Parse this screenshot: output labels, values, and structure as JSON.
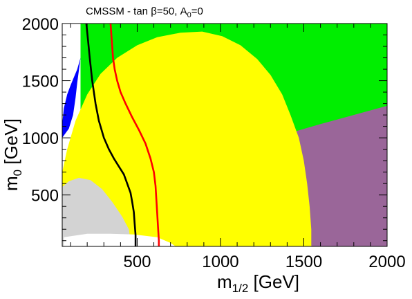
{
  "chart_data": {
    "type": "area",
    "title": "CMSSM  -  tan β=50,  A₀=0",
    "title_parts": [
      "CMSSM  -  tan ",
      "β",
      "=50,  A",
      "0",
      "=0"
    ],
    "xlabel_parts": [
      "m",
      "1/2",
      " [GeV]"
    ],
    "ylabel_parts": [
      "m",
      "0",
      " [GeV]"
    ],
    "xlim": [
      50,
      2000
    ],
    "ylim": [
      50,
      2000
    ],
    "x_ticks": [
      500,
      1000,
      1500,
      2000
    ],
    "y_ticks": [
      500,
      1000,
      1500,
      2000
    ],
    "grid": false,
    "regions": [
      {
        "id": "green",
        "color": "#00ee00",
        "points": [
          [
            160,
            2000
          ],
          [
            2000,
            2000
          ],
          [
            2000,
            1000
          ],
          [
            160,
            1000
          ]
        ]
      },
      {
        "id": "purple",
        "color": "#9a6699",
        "points": [
          [
            1410,
            1040
          ],
          [
            1600,
            1120
          ],
          [
            2000,
            1280
          ],
          [
            2000,
            50
          ],
          [
            1545,
            50
          ],
          [
            1520,
            380
          ],
          [
            1480,
            800
          ]
        ]
      },
      {
        "id": "yellow",
        "color": "#ffff00",
        "points": [
          [
            50,
            200
          ],
          [
            50,
            700
          ],
          [
            80,
            900
          ],
          [
            130,
            1150
          ],
          [
            200,
            1380
          ],
          [
            280,
            1560
          ],
          [
            380,
            1700
          ],
          [
            500,
            1810
          ],
          [
            620,
            1880
          ],
          [
            760,
            1920
          ],
          [
            890,
            1930
          ],
          [
            1010,
            1890
          ],
          [
            1120,
            1810
          ],
          [
            1220,
            1690
          ],
          [
            1300,
            1550
          ],
          [
            1370,
            1380
          ],
          [
            1420,
            1200
          ],
          [
            1470,
            1000
          ],
          [
            1500,
            800
          ],
          [
            1520,
            600
          ],
          [
            1535,
            400
          ],
          [
            1545,
            200
          ],
          [
            1545,
            50
          ],
          [
            50,
            50
          ]
        ]
      },
      {
        "id": "grey",
        "color": "#d3d3d3",
        "points": [
          [
            50,
            50
          ],
          [
            50,
            570
          ],
          [
            90,
            620
          ],
          [
            150,
            650
          ],
          [
            220,
            630
          ],
          [
            290,
            550
          ],
          [
            350,
            440
          ],
          [
            410,
            310
          ],
          [
            450,
            200
          ],
          [
            460,
            100
          ],
          [
            460,
            50
          ]
        ]
      },
      {
        "id": "white-bottom",
        "color": "#ffffff",
        "points": [
          [
            60,
            50
          ],
          [
            60,
            130
          ],
          [
            200,
            160
          ],
          [
            340,
            160
          ],
          [
            480,
            155
          ],
          [
            620,
            130
          ],
          [
            700,
            80
          ],
          [
            730,
            50
          ]
        ]
      },
      {
        "id": "blue",
        "color": "#0000ff",
        "points": [
          [
            50,
            1000
          ],
          [
            50,
            1120
          ],
          [
            60,
            1260
          ],
          [
            80,
            1380
          ],
          [
            100,
            1460
          ],
          [
            120,
            1530
          ],
          [
            140,
            1600
          ],
          [
            150,
            1650
          ],
          [
            160,
            1700
          ],
          [
            150,
            1590
          ],
          [
            140,
            1480
          ],
          [
            130,
            1350
          ],
          [
            115,
            1200
          ],
          [
            90,
            1080
          ],
          [
            60,
            1020
          ]
        ]
      },
      {
        "id": "white-top",
        "color": "#ffffff",
        "points": [
          [
            50,
            1430
          ],
          [
            50,
            2000
          ],
          [
            140,
            2000
          ],
          [
            120,
            1900
          ],
          [
            100,
            1800
          ],
          [
            80,
            1680
          ],
          [
            60,
            1540
          ]
        ]
      }
    ],
    "series": [
      {
        "color": "#000000",
        "x": [
          195,
          205,
          215,
          230,
          250,
          270,
          300,
          330,
          360,
          390,
          420,
          440,
          460,
          470,
          480,
          485,
          490,
          490,
          490
        ],
        "y": [
          2000,
          1850,
          1700,
          1500,
          1300,
          1150,
          1000,
          900,
          820,
          750,
          680,
          600,
          520,
          440,
          350,
          250,
          150,
          80,
          50
        ]
      },
      {
        "color": "#ff0000",
        "x": [
          340,
          345,
          350,
          355,
          365,
          380,
          400,
          430,
          470,
          510,
          550,
          580,
          600,
          610,
          615,
          620,
          625,
          630,
          630
        ],
        "y": [
          2000,
          1900,
          1800,
          1700,
          1600,
          1500,
          1400,
          1300,
          1180,
          1070,
          950,
          820,
          700,
          580,
          460,
          340,
          220,
          100,
          50
        ]
      }
    ]
  }
}
